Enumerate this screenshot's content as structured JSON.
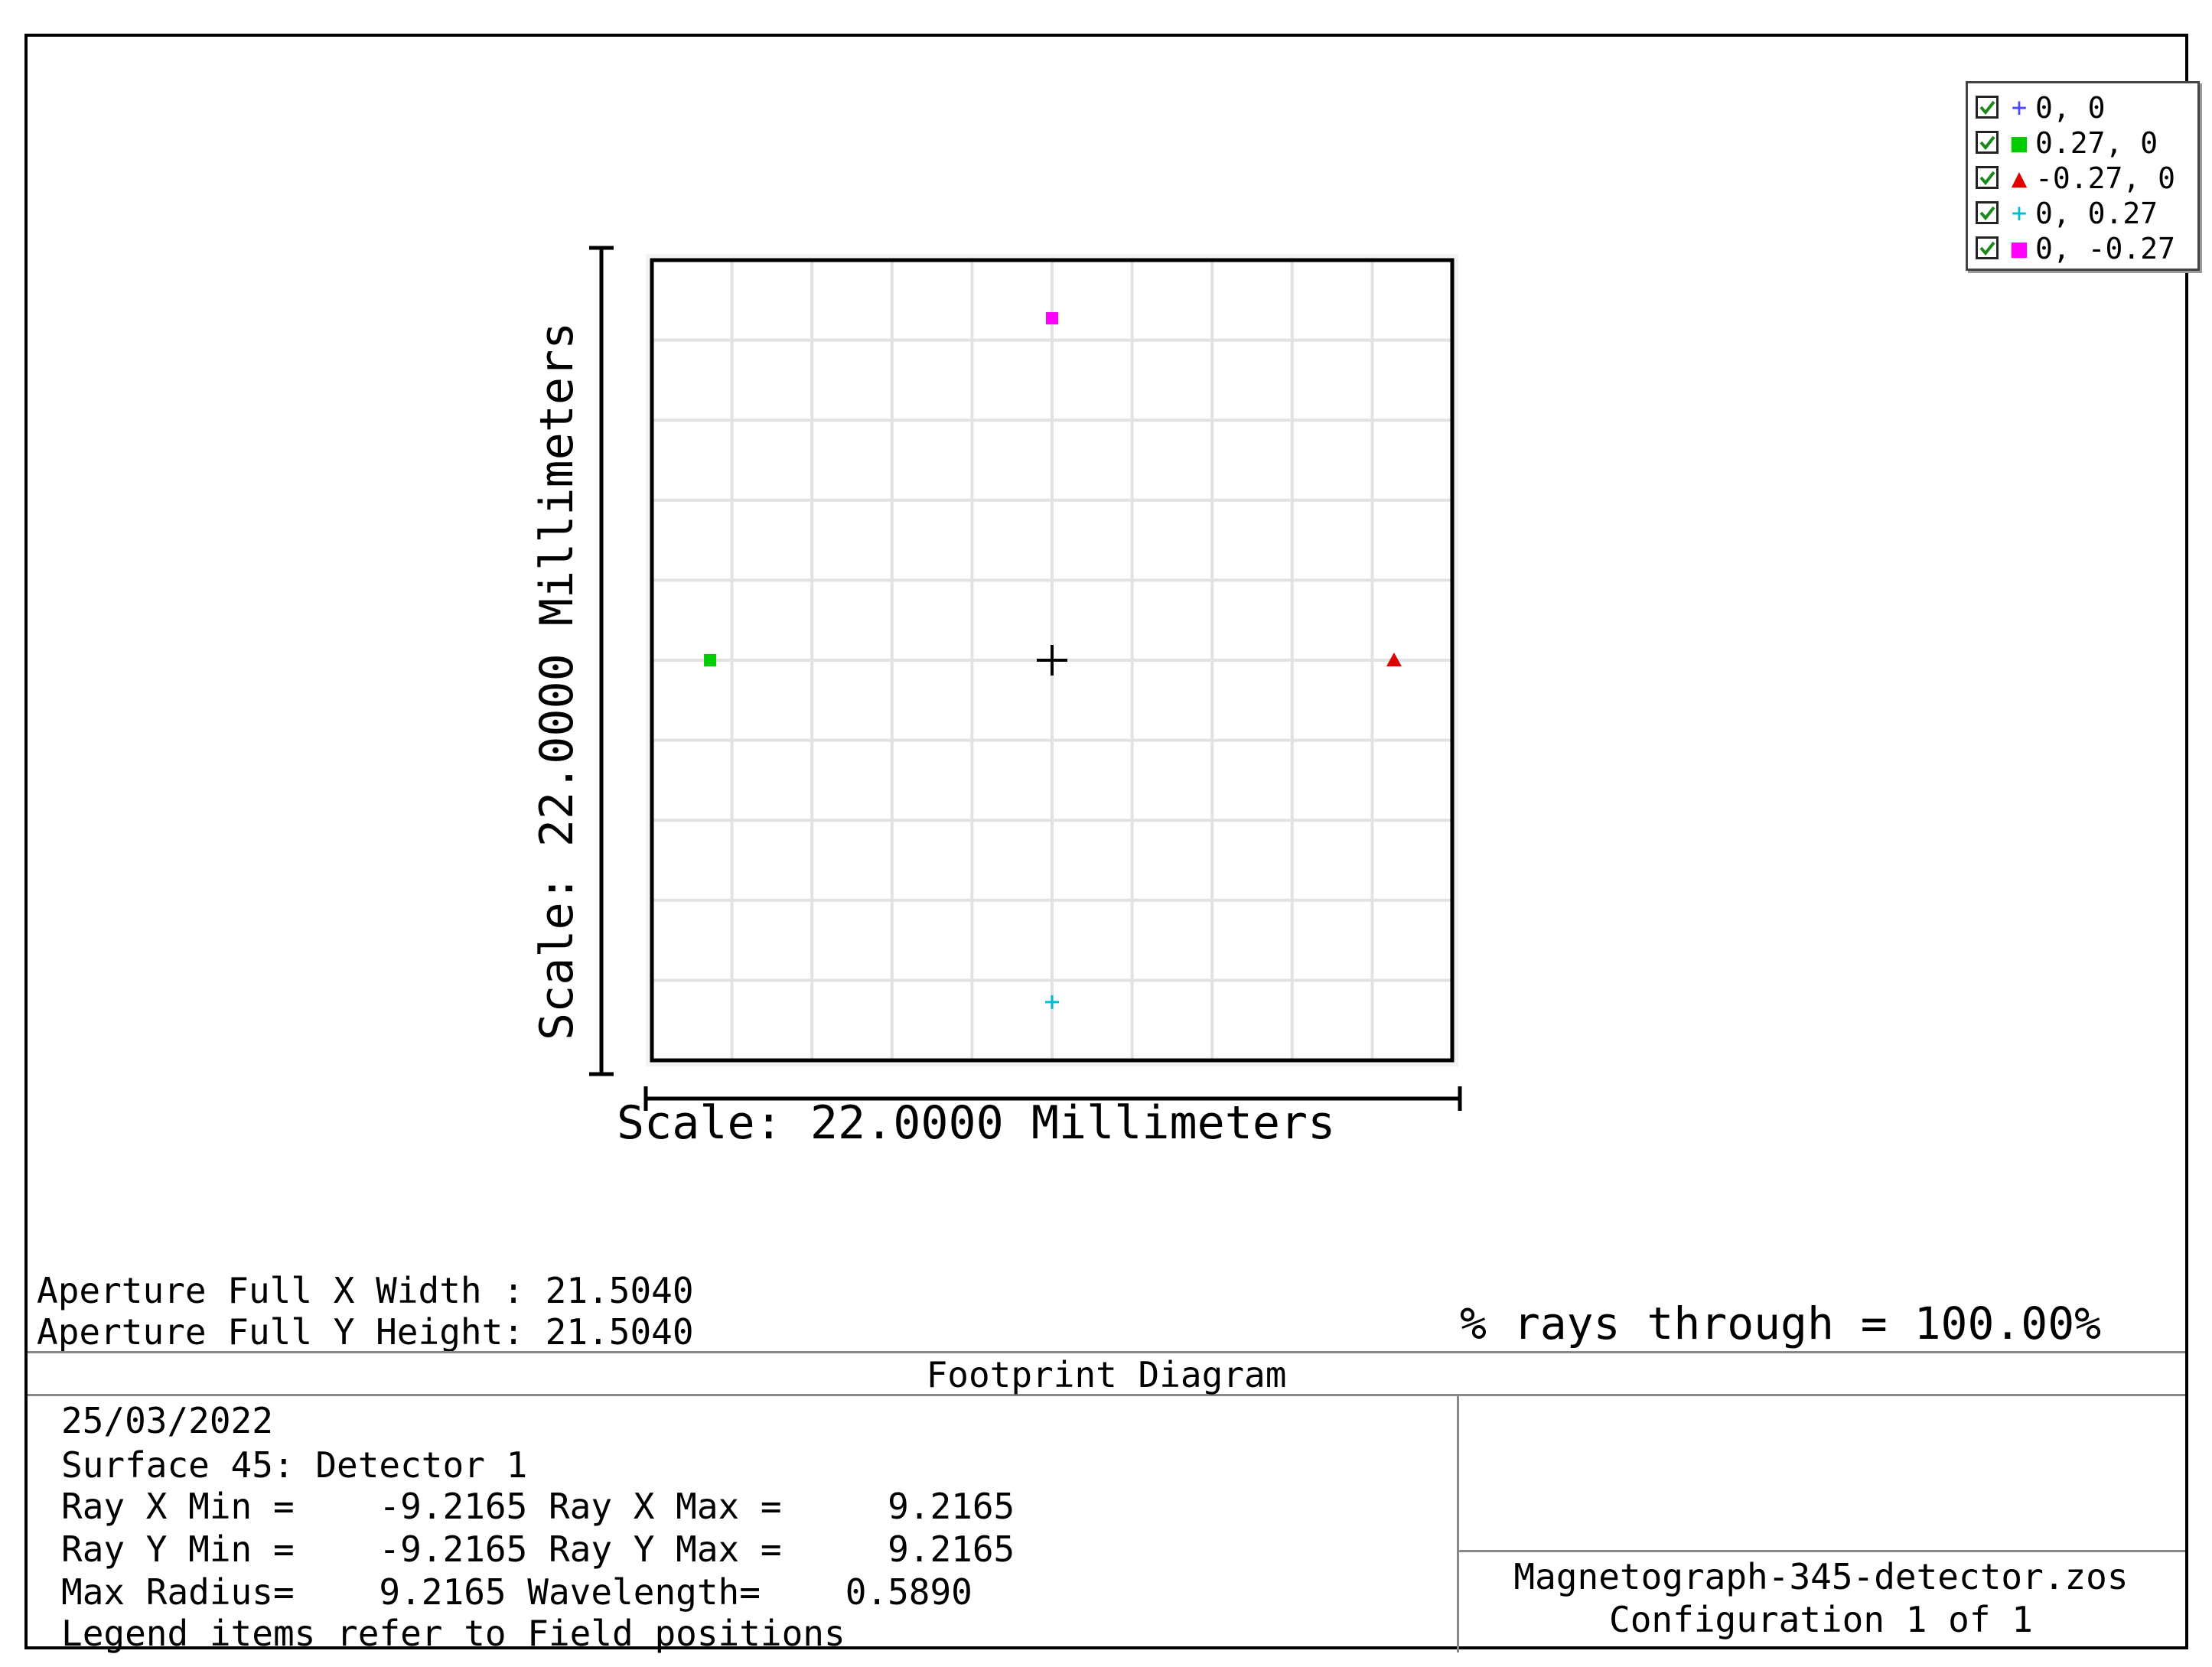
{
  "chart_data": {
    "type": "scatter",
    "title": "Footprint Diagram",
    "xlabel": "Scale: 22.0000 Millimeters",
    "ylabel": "Scale: 22.0000 Millimeters",
    "xlim": [
      -11,
      11
    ],
    "ylim": [
      -11,
      11
    ],
    "grid": true,
    "legend_position": "top-right",
    "series": [
      {
        "name": "0, 0",
        "marker": "plus",
        "color": "#000000",
        "legend_color": "#4a4aff",
        "points": [
          [
            0,
            0
          ]
        ]
      },
      {
        "name": "0.27, 0",
        "marker": "square",
        "color": "#00cc00",
        "points": [
          [
            -9.4,
            0
          ]
        ]
      },
      {
        "name": "-0.27, 0",
        "marker": "triangle",
        "color": "#e00000",
        "points": [
          [
            9.4,
            0
          ]
        ]
      },
      {
        "name": "0, 0.27",
        "marker": "plus",
        "color": "#00bcd4",
        "points": [
          [
            0,
            -9.4
          ]
        ]
      },
      {
        "name": "0, -0.27",
        "marker": "square",
        "color": "#ff00ff",
        "points": [
          [
            0,
            9.4
          ]
        ]
      }
    ]
  },
  "aperture": {
    "x_line": "Aperture Full X Width : 21.5040",
    "y_line": "Aperture Full Y Height: 21.5040"
  },
  "rays_through": "% rays through = 100.00%",
  "footer": {
    "title": "Footprint Diagram",
    "date": "25/03/2022",
    "surface": "Surface 45: Detector 1",
    "ray_x": "Ray X Min =    -9.2165 Ray X Max =     9.2165",
    "ray_y": "Ray Y Min =    -9.2165 Ray Y Max =     9.2165",
    "max_radius": "Max Radius=    9.2165 Wavelength=    0.5890",
    "legend_note": "Legend items refer to Field positions",
    "filename": "Magnetograph-345-detector.zos",
    "configuration": "Configuration 1 of 1"
  }
}
